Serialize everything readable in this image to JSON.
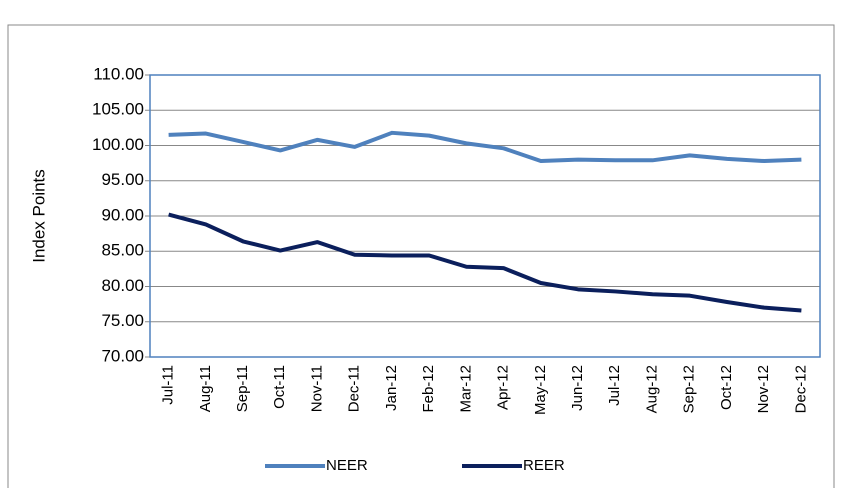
{
  "chart_data": {
    "type": "line",
    "y_label": "Index Points",
    "categories": [
      "Jul-11",
      "Aug-11",
      "Sep-11",
      "Oct-11",
      "Nov-11",
      "Dec-11",
      "Jan-12",
      "Feb-12",
      "Mar-12",
      "Apr-12",
      "May-12",
      "Jun-12",
      "Jul-12",
      "Aug-12",
      "Sep-12",
      "Oct-12",
      "Nov-12",
      "Dec-12"
    ],
    "series": [
      {
        "name": "NEER",
        "color": "#4f81bd",
        "values": [
          101.5,
          101.7,
          100.5,
          99.3,
          100.8,
          99.8,
          101.8,
          101.4,
          100.3,
          99.6,
          97.8,
          98.0,
          97.9,
          97.9,
          98.6,
          98.1,
          97.8,
          98.0
        ]
      },
      {
        "name": "REER",
        "color": "#0b1f5c",
        "values": [
          90.2,
          88.8,
          86.4,
          85.1,
          86.3,
          84.5,
          84.4,
          84.4,
          82.8,
          82.6,
          80.5,
          79.6,
          79.3,
          78.9,
          78.7,
          77.8,
          77.0,
          76.6
        ]
      }
    ],
    "ylim": [
      70,
      110
    ],
    "yticks": [
      {
        "value": 70,
        "label": "70.00"
      },
      {
        "value": 75,
        "label": "75.00"
      },
      {
        "value": 80,
        "label": "80.00"
      },
      {
        "value": 85,
        "label": "85.00"
      },
      {
        "value": 90,
        "label": "90.00"
      },
      {
        "value": 95,
        "label": "95.00"
      },
      {
        "value": 100,
        "label": "100.00"
      },
      {
        "value": 105,
        "label": "105.00"
      },
      {
        "value": 110,
        "label": "110.00"
      }
    ],
    "grid": true,
    "legend": "bottom"
  }
}
